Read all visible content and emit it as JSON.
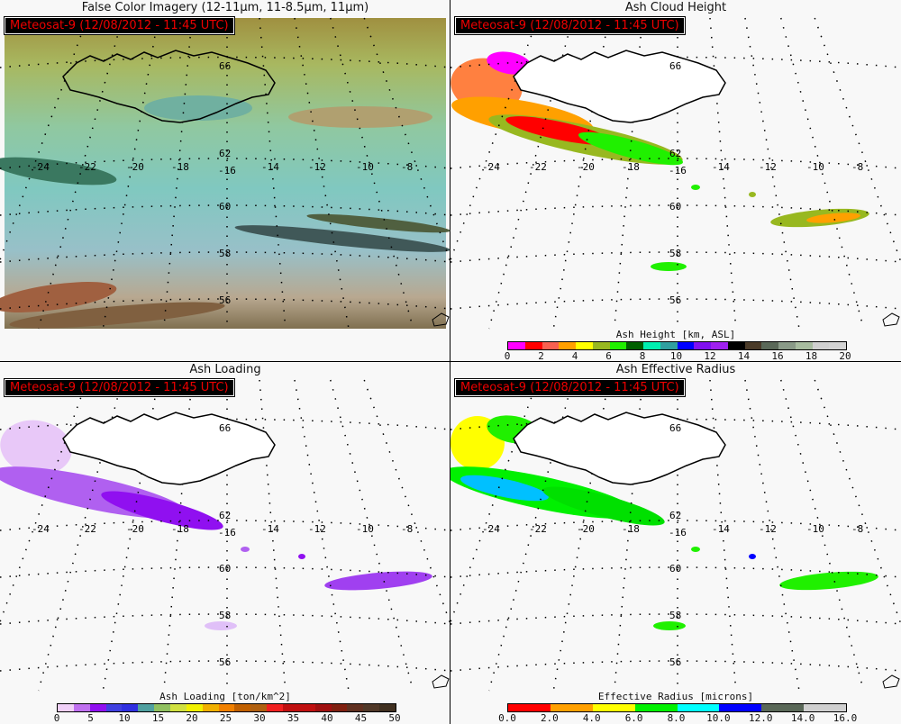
{
  "badge": "Meteosat-9  (12/08/2012 - 11:45 UTC)",
  "panels": [
    {
      "title": "False Color Imagery (12-11μm, 11-8.5μm, 11μm)"
    },
    {
      "title": "Ash Cloud Height",
      "colorbar": {
        "label": "Ash Height [km, ASL]",
        "ticks": [
          "0",
          "2",
          "4",
          "6",
          "8",
          "10",
          "12",
          "14",
          "16",
          "18",
          "20"
        ],
        "colors": [
          "#ff00ff",
          "#ff0000",
          "#f86050",
          "#ffa000",
          "#ffff00",
          "#98b820",
          "#20f000",
          "#006000",
          "#00f0b0",
          "#30a0a0",
          "#0000ff",
          "#8010f0",
          "#a020f0",
          "#000000",
          "#4a3a28",
          "#5a6858",
          "#8a9a88",
          "#a8bca0",
          "#d0d0d0",
          "#d4d4d4"
        ]
      }
    },
    {
      "title": "Ash Loading",
      "colorbar": {
        "label": "Ash Loading [ton/km^2]",
        "ticks": [
          "0",
          "5",
          "10",
          "15",
          "20",
          "25",
          "30",
          "35",
          "40",
          "45",
          "50"
        ],
        "colors": [
          "#f0d0f8",
          "#c070f0",
          "#9010f0",
          "#4040e0",
          "#3030e0",
          "#50a0a0",
          "#90c060",
          "#d0e040",
          "#f0f000",
          "#f0b000",
          "#f08000",
          "#c06000",
          "#b06010",
          "#f02020",
          "#c01010",
          "#c01010",
          "#a01010",
          "#802010",
          "#603020",
          "#503828",
          "#403020"
        ]
      }
    },
    {
      "title": "Ash Effective Radius",
      "colorbar": {
        "label": "Effective Radius [microns]",
        "ticks": [
          "0.0",
          "2.0",
          "4.0",
          "6.0",
          "8.0",
          "10.0",
          "12.0",
          "14.0",
          "16.0"
        ],
        "colors": [
          "#ff0000",
          "#ffa000",
          "#ffff00",
          "#00f000",
          "#00ffff",
          "#0000ff",
          "#5a6858",
          "#d0d0d0"
        ]
      }
    }
  ],
  "lat_labels": [
    "62",
    "60",
    "58",
    "56"
  ],
  "lon_labels": [
    "-24",
    "-22",
    "-20",
    "-18",
    "-16",
    "-14",
    "-12",
    "-10",
    "-8"
  ],
  "top_lat_label": "66"
}
